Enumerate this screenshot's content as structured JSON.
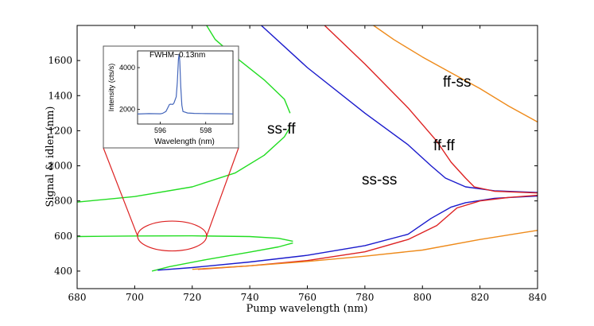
{
  "chart_data": {
    "type": "line",
    "title": "",
    "xlabel": "Pump wavelength (nm)",
    "ylabel": "Signal & idler (nm)",
    "xlim": [
      680,
      840
    ],
    "ylim": [
      300,
      1800
    ],
    "xticks": [
      680,
      700,
      720,
      740,
      760,
      780,
      800,
      820,
      840
    ],
    "yticks": [
      400,
      600,
      800,
      1000,
      1200,
      1400,
      1600
    ],
    "grid": false,
    "curve_labels": {
      "ss_ff": "ss-ff",
      "ss_ss": "ss-ss",
      "ff_ff": "ff-ff",
      "ff_ss": "ff-ss"
    },
    "series": [
      {
        "name": "ss-ff",
        "color": "#22dd22",
        "segments": [
          [
            [
              680,
              793
            ],
            [
              700,
              825
            ],
            [
              720,
              880
            ],
            [
              735,
              960
            ],
            [
              745,
              1060
            ],
            [
              752,
              1165
            ],
            [
              754,
              1220
            ]
          ],
          [
            [
              754,
              1300
            ],
            [
              752,
              1380
            ],
            [
              745,
              1490
            ],
            [
              735,
              1620
            ],
            [
              728,
              1720
            ],
            [
              725,
              1800
            ]
          ],
          [
            [
              680,
              597
            ],
            [
              700,
              600
            ],
            [
              720,
              601
            ],
            [
              740,
              597
            ],
            [
              750,
              587
            ],
            [
              755,
              570
            ]
          ],
          [
            [
              755,
              560
            ],
            [
              750,
              538
            ],
            [
              740,
              508
            ],
            [
              725,
              466
            ],
            [
              712,
              425
            ],
            [
              706,
              400
            ]
          ]
        ]
      },
      {
        "name": "ss-ss",
        "color": "#1a1acc",
        "segments": [
          [
            [
              744,
              1800
            ],
            [
              760,
              1560
            ],
            [
              780,
              1300
            ],
            [
              795,
              1120
            ],
            [
              803,
              1000
            ],
            [
              808,
              930
            ],
            [
              815,
              880
            ],
            [
              825,
              858
            ],
            [
              840,
              848
            ]
          ],
          [
            [
              708,
              405
            ],
            [
              720,
              420
            ],
            [
              740,
              452
            ],
            [
              760,
              490
            ],
            [
              780,
              545
            ],
            [
              795,
              610
            ],
            [
              803,
              700
            ],
            [
              810,
              765
            ],
            [
              815,
              790
            ],
            [
              825,
              815
            ],
            [
              840,
              828
            ]
          ]
        ]
      },
      {
        "name": "ff-ff",
        "color": "#dd2222",
        "segments": [
          [
            [
              766,
              1800
            ],
            [
              780,
              1580
            ],
            [
              795,
              1330
            ],
            [
              805,
              1140
            ],
            [
              810,
              1020
            ],
            [
              815,
              930
            ],
            [
              818,
              880
            ],
            [
              825,
              855
            ],
            [
              840,
              845
            ]
          ],
          [
            [
              722,
              410
            ],
            [
              740,
              430
            ],
            [
              760,
              460
            ],
            [
              780,
              510
            ],
            [
              795,
              580
            ],
            [
              805,
              660
            ],
            [
              812,
              760
            ],
            [
              820,
              800
            ],
            [
              830,
              820
            ],
            [
              840,
              832
            ]
          ]
        ]
      },
      {
        "name": "ff-ss",
        "color": "#ee8a1a",
        "segments": [
          [
            [
              783,
              1800
            ],
            [
              790,
              1720
            ],
            [
              800,
              1620
            ],
            [
              810,
              1530
            ],
            [
              820,
              1440
            ],
            [
              830,
              1340
            ],
            [
              840,
              1250
            ]
          ],
          [
            [
              720,
              410
            ],
            [
              740,
              430
            ],
            [
              760,
              455
            ],
            [
              780,
              485
            ],
            [
              800,
              520
            ],
            [
              820,
              580
            ],
            [
              840,
              632
            ]
          ]
        ]
      }
    ],
    "annotation": {
      "ellipse_center": [
        713,
        600
      ],
      "ellipse_radii": [
        12,
        85
      ],
      "color": "#dd2222"
    },
    "inset": {
      "type": "line",
      "annotation": "FWHM~0.13nm",
      "xlabel": "Wavelength (nm)",
      "ylabel": "Intensity (cts/s)",
      "xlim": [
        595,
        599.2
      ],
      "ylim": [
        1300,
        4800
      ],
      "xticks": [
        596,
        598
      ],
      "yticks": [
        2000,
        4000
      ],
      "color": "#4466bb",
      "x": [
        595.0,
        595.5,
        596.0,
        596.1,
        596.25,
        596.4,
        596.45,
        596.55,
        596.6,
        596.7,
        596.75,
        596.8,
        596.83,
        596.86,
        596.9,
        596.95,
        597.0,
        597.2,
        597.5,
        598.0,
        598.5,
        599.0,
        599.2
      ],
      "y": [
        1780,
        1800,
        1790,
        1810,
        1900,
        2230,
        2250,
        2240,
        2300,
        2600,
        3300,
        4400,
        4650,
        4300,
        3100,
        2200,
        1900,
        1830,
        1810,
        1800,
        1795,
        1790,
        1785
      ]
    }
  }
}
